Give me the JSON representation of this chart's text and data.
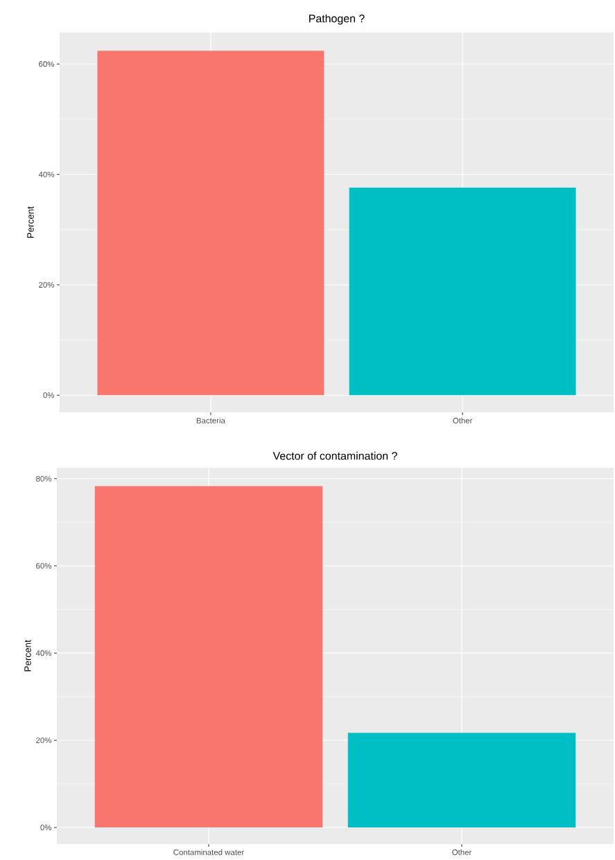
{
  "chart_data": [
    {
      "type": "bar",
      "title": "Pathogen ?",
      "ylabel": "Percent",
      "categories": [
        "Bacteria",
        "Other"
      ],
      "values": [
        62.4,
        37.6
      ],
      "colors": [
        "#f8766d",
        "#00bfc4"
      ],
      "ylim": [
        -3.1,
        65.7
      ],
      "yticks": [
        {
          "value": 0,
          "label": "0%"
        },
        {
          "value": 20,
          "label": "20%"
        },
        {
          "value": 40,
          "label": "40%"
        },
        {
          "value": 60,
          "label": "60%"
        }
      ],
      "grid": true
    },
    {
      "type": "bar",
      "title": "Vector of contamination ?",
      "ylabel": "Percent",
      "categories": [
        "Contaminated water",
        "Other"
      ],
      "values": [
        78.3,
        21.7
      ],
      "colors": [
        "#f8766d",
        "#00bfc4"
      ],
      "ylim": [
        -3.8,
        82.5
      ],
      "yticks": [
        {
          "value": 0,
          "label": "0%"
        },
        {
          "value": 20,
          "label": "20%"
        },
        {
          "value": 40,
          "label": "40%"
        },
        {
          "value": 60,
          "label": "60%"
        },
        {
          "value": 80,
          "label": "80%"
        }
      ],
      "grid": true
    }
  ]
}
